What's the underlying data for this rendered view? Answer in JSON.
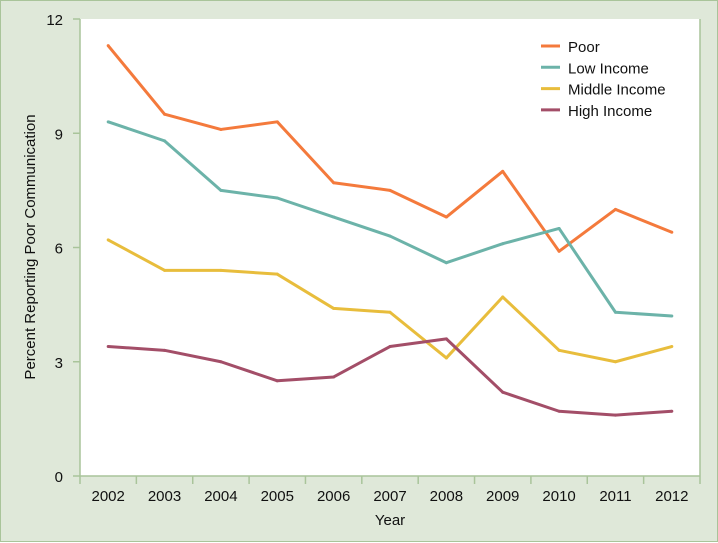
{
  "chart_data": {
    "type": "line",
    "title": "",
    "xlabel": "Year",
    "ylabel": "Percent Reporting Poor Communication",
    "x": [
      "2002",
      "2003",
      "2004",
      "2005",
      "2006",
      "2007",
      "2008",
      "2009",
      "2010",
      "2011",
      "2012"
    ],
    "ylim": [
      0,
      12
    ],
    "yticks": [
      "0",
      "3",
      "6",
      "9",
      "12"
    ],
    "legend_position": "top-right",
    "grid": false,
    "series": [
      {
        "name": "Poor",
        "color": "#f47a3c",
        "values": [
          11.3,
          9.5,
          9.1,
          9.3,
          7.7,
          7.5,
          6.8,
          8.0,
          5.9,
          7.0,
          6.4
        ]
      },
      {
        "name": "Low Income",
        "color": "#6cb3a9",
        "values": [
          9.3,
          8.8,
          7.5,
          7.3,
          6.8,
          6.3,
          5.6,
          6.1,
          6.5,
          4.3,
          4.2
        ]
      },
      {
        "name": "Middle Income",
        "color": "#e8bd3c",
        "values": [
          6.2,
          5.4,
          5.4,
          5.3,
          4.4,
          4.3,
          3.1,
          4.7,
          3.3,
          3.0,
          3.4
        ]
      },
      {
        "name": "High Income",
        "color": "#a34e68",
        "values": [
          3.4,
          3.3,
          3.0,
          2.5,
          2.6,
          3.4,
          3.6,
          2.2,
          1.7,
          1.6,
          1.7
        ]
      }
    ]
  }
}
